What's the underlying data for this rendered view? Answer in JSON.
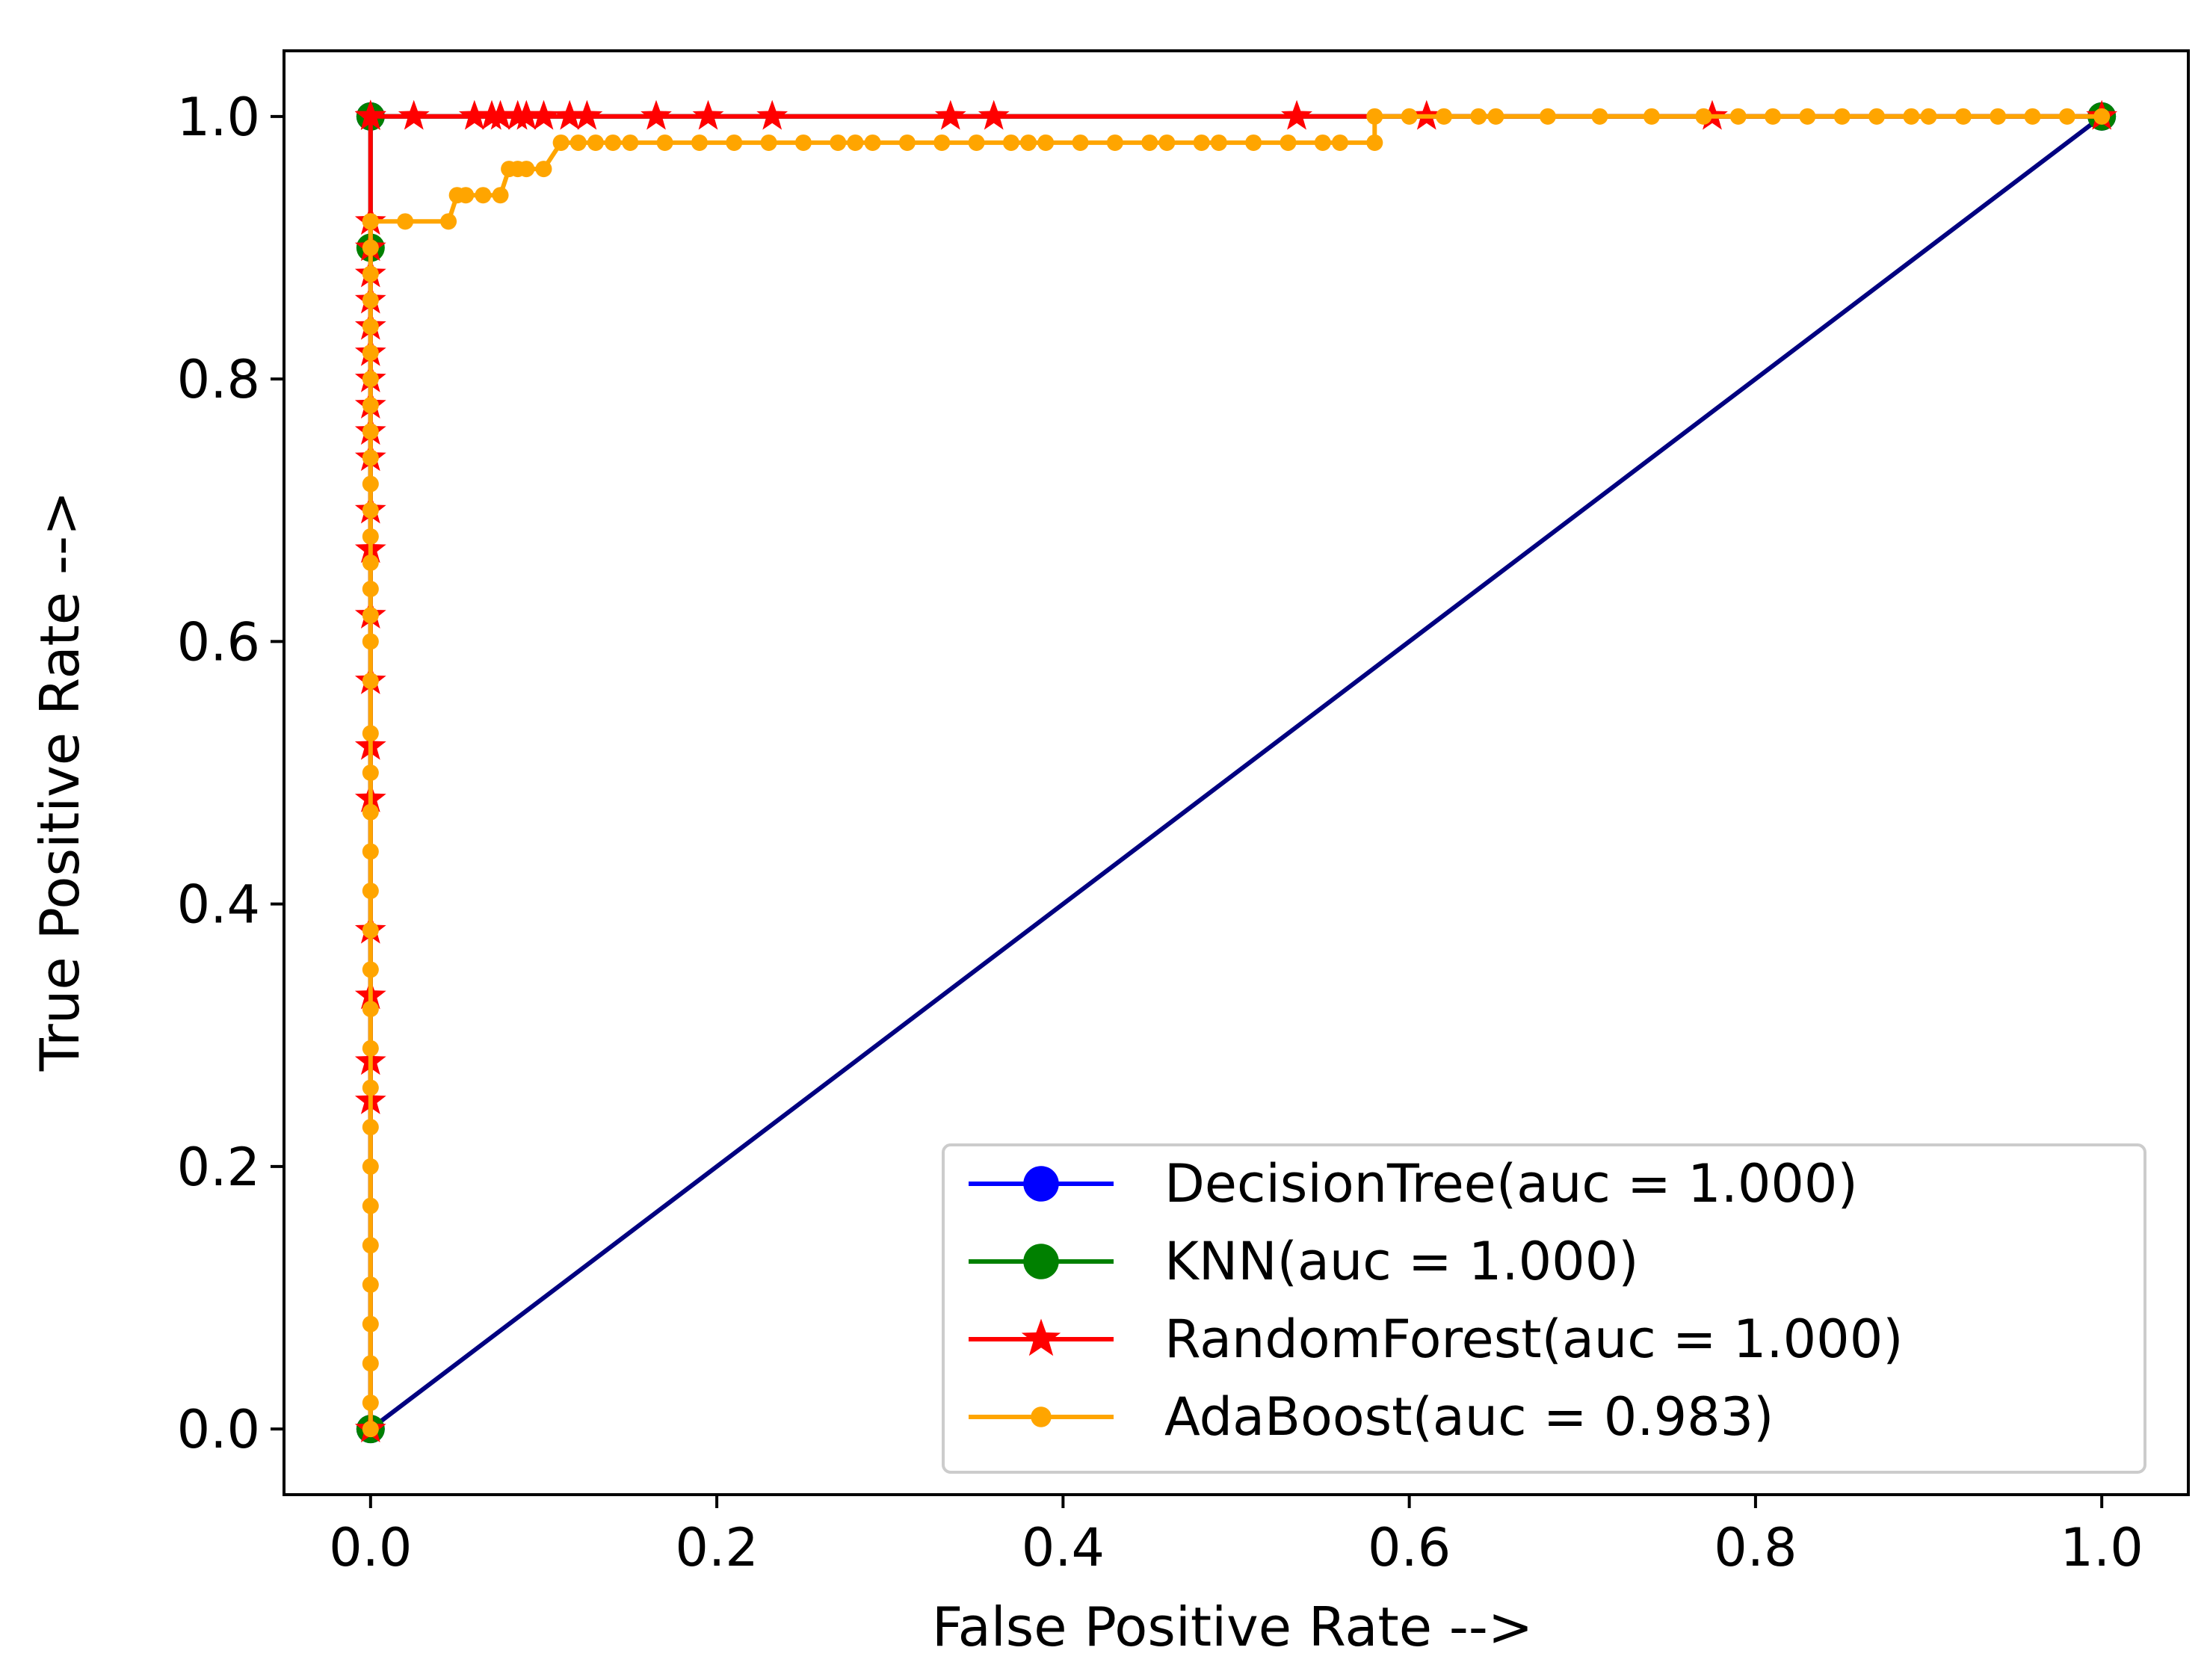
{
  "chart_data": {
    "type": "line",
    "xlabel": "False Positive Rate -->",
    "ylabel": "True Positive Rate -->",
    "xlim": [
      -0.05,
      1.05
    ],
    "ylim": [
      -0.05,
      1.05
    ],
    "xticks": [
      "0.0",
      "0.2",
      "0.4",
      "0.6",
      "0.8",
      "1.0"
    ],
    "yticks": [
      "0.0",
      "0.2",
      "0.4",
      "0.6",
      "0.8",
      "1.0"
    ],
    "grid": false,
    "legend_position": "lower-right",
    "reference_line": {
      "x": [
        0,
        1
      ],
      "y": [
        0,
        1
      ],
      "color": "#000080"
    },
    "series": [
      {
        "name": "DecisionTree(auc = 1.000)",
        "color": "#0000ff",
        "marker": "circle",
        "x": [
          0,
          0,
          1
        ],
        "y": [
          0,
          1,
          1
        ]
      },
      {
        "name": "KNN(auc = 1.000)",
        "color": "#008000",
        "marker": "circle",
        "x": [
          0,
          0,
          0,
          1
        ],
        "y": [
          0,
          0.9,
          1,
          1
        ]
      },
      {
        "name": "RandomForest(auc = 1.000)",
        "color": "#ff0000",
        "marker": "star",
        "x": [
          0,
          0,
          0,
          0,
          0,
          0,
          0,
          0,
          0,
          0,
          0,
          0,
          0,
          0,
          0,
          0,
          0,
          0,
          0,
          0,
          0,
          0,
          0,
          0,
          0,
          0,
          0,
          0,
          0,
          0,
          0,
          0,
          0.025,
          0.06,
          0.07,
          0.075,
          0.085,
          0.09,
          0.1,
          0.115,
          0.125,
          0.165,
          0.195,
          0.232,
          0.335,
          0.36,
          0.535,
          0.61,
          0.775,
          1
        ],
        "y": [
          0,
          0.25,
          0.28,
          0.33,
          0.38,
          0.48,
          0.52,
          0.57,
          0.62,
          0.67,
          0.7,
          0.74,
          0.76,
          0.78,
          0.8,
          0.82,
          0.84,
          0.86,
          0.88,
          0.9,
          0.92,
          1,
          1,
          1,
          1,
          1,
          1,
          1,
          1,
          1,
          1,
          1,
          1,
          1,
          1,
          1,
          1,
          1,
          1,
          1,
          1,
          1,
          1,
          1,
          1,
          1,
          1,
          1,
          1,
          1
        ]
      },
      {
        "name": "AdaBoost(auc = 0.983)",
        "color": "#ffa500",
        "marker": "dot",
        "x": [
          0,
          0,
          0,
          0,
          0,
          0,
          0,
          0,
          0,
          0,
          0,
          0,
          0,
          0,
          0,
          0,
          0,
          0,
          0,
          0,
          0,
          0,
          0,
          0,
          0,
          0,
          0,
          0,
          0,
          0,
          0,
          0,
          0,
          0,
          0,
          0,
          0,
          0,
          0,
          0,
          0,
          0,
          0,
          0,
          0.02,
          0.045,
          0.05,
          0.055,
          0.065,
          0.075,
          0.08,
          0.085,
          0.09,
          0.1,
          0.11,
          0.12,
          0.13,
          0.14,
          0.15,
          0.17,
          0.19,
          0.21,
          0.23,
          0.25,
          0.27,
          0.28,
          0.29,
          0.31,
          0.33,
          0.35,
          0.37,
          0.38,
          0.39,
          0.41,
          0.43,
          0.45,
          0.46,
          0.48,
          0.49,
          0.51,
          0.53,
          0.55,
          0.56,
          0.58,
          0.58,
          0.6,
          0.62,
          0.64,
          0.65,
          0.68,
          0.71,
          0.74,
          0.77,
          0.79,
          0.81,
          0.83,
          0.85,
          0.87,
          0.89,
          0.9,
          0.92,
          0.94,
          0.96,
          0.98,
          1
        ],
        "y": [
          0,
          0.02,
          0.05,
          0.08,
          0.11,
          0.14,
          0.17,
          0.2,
          0.23,
          0.26,
          0.29,
          0.32,
          0.35,
          0.38,
          0.41,
          0.44,
          0.47,
          0.5,
          0.53,
          0.57,
          0.6,
          0.62,
          0.64,
          0.66,
          0.68,
          0.7,
          0.72,
          0.74,
          0.76,
          0.78,
          0.8,
          0.82,
          0.84,
          0.86,
          0.88,
          0.9,
          0.92,
          0.92,
          0.92,
          0.92,
          0.92,
          0.92,
          0.92,
          0.92,
          0.92,
          0.92,
          0.94,
          0.94,
          0.94,
          0.94,
          0.96,
          0.96,
          0.96,
          0.96,
          0.98,
          0.98,
          0.98,
          0.98,
          0.98,
          0.98,
          0.98,
          0.98,
          0.98,
          0.98,
          0.98,
          0.98,
          0.98,
          0.98,
          0.98,
          0.98,
          0.98,
          0.98,
          0.98,
          0.98,
          0.98,
          0.98,
          0.98,
          0.98,
          0.98,
          0.98,
          0.98,
          0.98,
          0.98,
          0.98,
          1,
          1,
          1,
          1,
          1,
          1,
          1,
          1,
          1,
          1,
          1,
          1,
          1,
          1,
          1,
          1,
          1,
          1,
          1,
          1,
          1
        ]
      }
    ]
  }
}
